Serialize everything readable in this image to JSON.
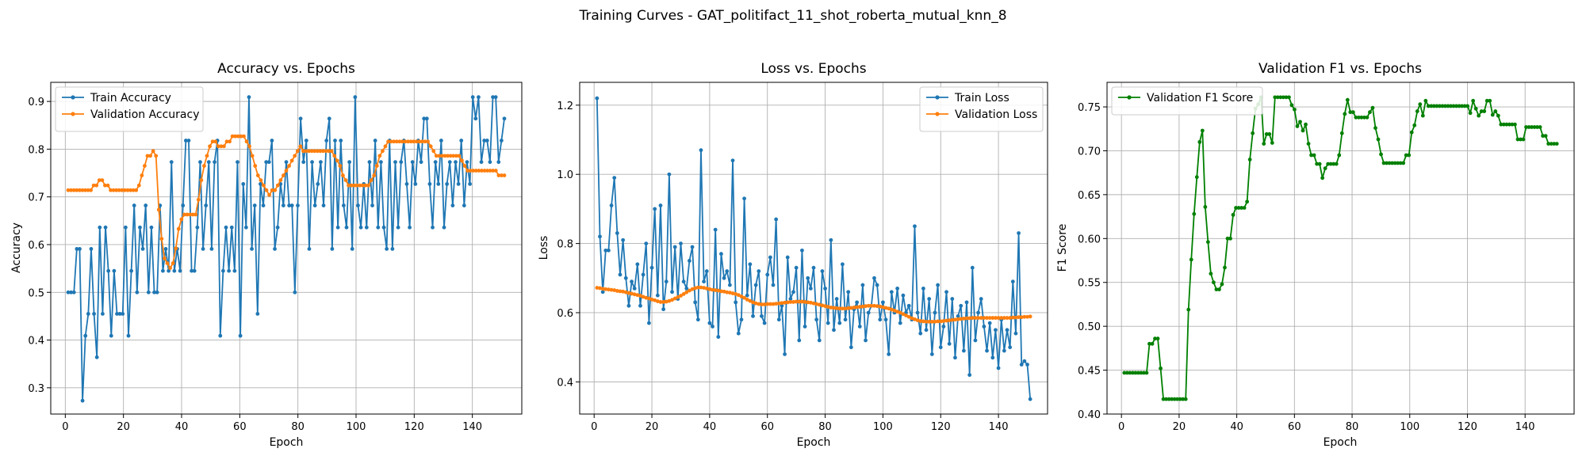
{
  "figure": {
    "suptitle": "Training Curves - GAT_politifact_11_shot_roberta_mutual_knn_8"
  },
  "colors": {
    "train": "#1f77b4",
    "validation": "#ff7f0e",
    "f1": "#008000",
    "grid": "#b0b0b0",
    "axes": "#000000"
  },
  "chart_data": [
    {
      "type": "line",
      "title": "Accuracy vs. Epochs",
      "xlabel": "Epoch",
      "ylabel": "Accuracy",
      "xlim": [
        -5,
        157
      ],
      "ylim": [
        0.245,
        0.94
      ],
      "xticks": [
        0,
        20,
        40,
        60,
        80,
        100,
        120,
        140
      ],
      "yticks": [
        0.3,
        0.4,
        0.5,
        0.6,
        0.7,
        0.8,
        0.9
      ],
      "grid": true,
      "legend": "upper left",
      "x_range": [
        1,
        151
      ],
      "marker": "circle",
      "series": [
        {
          "name": "Train Accuracy",
          "color": "#1f77b4",
          "values": [
            0.5,
            0.5,
            0.5,
            0.591,
            0.591,
            0.273,
            0.409,
            0.455,
            0.591,
            0.455,
            0.364,
            0.636,
            0.455,
            0.636,
            0.545,
            0.409,
            0.545,
            0.455,
            0.455,
            0.455,
            0.636,
            0.409,
            0.545,
            0.682,
            0.5,
            0.636,
            0.591,
            0.682,
            0.5,
            0.636,
            0.5,
            0.5,
            0.682,
            0.545,
            0.591,
            0.545,
            0.773,
            0.545,
            0.591,
            0.545,
            0.682,
            0.818,
            0.818,
            0.545,
            0.545,
            0.636,
            0.773,
            0.591,
            0.682,
            0.773,
            0.591,
            0.773,
            0.818,
            0.409,
            0.545,
            0.636,
            0.545,
            0.636,
            0.545,
            0.773,
            0.409,
            0.727,
            0.636,
            0.909,
            0.591,
            0.682,
            0.455,
            0.727,
            0.682,
            0.773,
            0.773,
            0.818,
            0.591,
            0.636,
            0.727,
            0.682,
            0.773,
            0.682,
            0.682,
            0.5,
            0.682,
            0.864,
            0.773,
            0.818,
            0.591,
            0.773,
            0.682,
            0.727,
            0.773,
            0.682,
            0.818,
            0.864,
            0.591,
            0.818,
            0.636,
            0.818,
            0.682,
            0.636,
            0.773,
            0.591,
            0.909,
            0.682,
            0.636,
            0.727,
            0.636,
            0.773,
            0.682,
            0.818,
            0.636,
            0.773,
            0.636,
            0.591,
            0.818,
            0.591,
            0.773,
            0.636,
            0.773,
            0.818,
            0.727,
            0.636,
            0.773,
            0.727,
            0.818,
            0.773,
            0.864,
            0.864,
            0.727,
            0.636,
            0.773,
            0.727,
            0.818,
            0.636,
            0.727,
            0.773,
            0.682,
            0.773,
            0.727,
            0.818,
            0.682,
            0.773,
            0.727,
            0.909,
            0.864,
            0.909,
            0.773,
            0.818,
            0.818,
            0.773,
            0.909,
            0.909,
            0.773,
            0.818,
            0.864
          ]
        },
        {
          "name": "Validation Accuracy",
          "color": "#ff7f0e",
          "values": [
            0.714,
            0.714,
            0.714,
            0.714,
            0.714,
            0.714,
            0.714,
            0.714,
            0.714,
            0.724,
            0.724,
            0.735,
            0.735,
            0.724,
            0.724,
            0.714,
            0.714,
            0.714,
            0.714,
            0.714,
            0.714,
            0.714,
            0.714,
            0.714,
            0.714,
            0.724,
            0.745,
            0.765,
            0.786,
            0.786,
            0.796,
            0.786,
            0.673,
            0.612,
            0.571,
            0.561,
            0.551,
            0.561,
            0.592,
            0.633,
            0.653,
            0.663,
            0.663,
            0.663,
            0.663,
            0.663,
            0.694,
            0.735,
            0.765,
            0.786,
            0.806,
            0.816,
            0.816,
            0.806,
            0.806,
            0.806,
            0.816,
            0.816,
            0.827,
            0.827,
            0.827,
            0.827,
            0.827,
            0.816,
            0.806,
            0.786,
            0.765,
            0.745,
            0.735,
            0.724,
            0.714,
            0.704,
            0.714,
            0.714,
            0.724,
            0.735,
            0.745,
            0.755,
            0.765,
            0.776,
            0.786,
            0.796,
            0.806,
            0.796,
            0.796,
            0.796,
            0.796,
            0.796,
            0.796,
            0.796,
            0.796,
            0.796,
            0.796,
            0.796,
            0.786,
            0.776,
            0.765,
            0.745,
            0.735,
            0.724,
            0.724,
            0.724,
            0.724,
            0.724,
            0.724,
            0.724,
            0.724,
            0.735,
            0.745,
            0.765,
            0.786,
            0.796,
            0.806,
            0.816,
            0.816,
            0.816,
            0.816,
            0.816,
            0.816,
            0.816,
            0.816,
            0.816,
            0.816,
            0.816,
            0.816,
            0.816,
            0.816,
            0.816,
            0.806,
            0.796,
            0.786,
            0.786,
            0.786,
            0.786,
            0.786,
            0.786,
            0.786,
            0.786,
            0.786,
            0.776,
            0.765,
            0.755,
            0.755,
            0.755,
            0.755,
            0.755,
            0.755,
            0.755,
            0.755,
            0.755,
            0.755,
            0.755,
            0.745,
            0.745,
            0.745
          ]
        }
      ]
    },
    {
      "type": "line",
      "title": "Loss vs. Epochs",
      "xlabel": "Epoch",
      "ylabel": "Loss",
      "xlim": [
        -5,
        157
      ],
      "ylim": [
        0.307,
        1.266
      ],
      "xticks": [
        0,
        20,
        40,
        60,
        80,
        100,
        120,
        140
      ],
      "yticks": [
        0.4,
        0.6,
        0.8,
        1.0,
        1.2
      ],
      "grid": true,
      "legend": "upper right",
      "x_range": [
        1,
        151
      ],
      "marker": "circle",
      "series": [
        {
          "name": "Train Loss",
          "color": "#1f77b4",
          "values": [
            1.22,
            0.82,
            0.66,
            0.78,
            0.78,
            0.91,
            0.99,
            0.83,
            0.71,
            0.81,
            0.7,
            0.62,
            0.69,
            0.67,
            0.74,
            0.62,
            0.71,
            0.8,
            0.57,
            0.73,
            0.9,
            0.65,
            0.91,
            0.61,
            0.69,
            1.0,
            0.66,
            0.79,
            0.64,
            0.8,
            0.69,
            0.67,
            0.75,
            0.79,
            0.63,
            0.58,
            1.07,
            0.69,
            0.72,
            0.57,
            0.56,
            0.84,
            0.53,
            0.77,
            0.7,
            0.72,
            0.68,
            1.04,
            0.63,
            0.54,
            0.58,
            0.93,
            0.65,
            0.74,
            0.59,
            0.68,
            0.72,
            0.59,
            0.57,
            0.71,
            0.76,
            0.68,
            0.87,
            0.58,
            0.62,
            0.48,
            0.76,
            0.64,
            0.66,
            0.73,
            0.52,
            0.78,
            0.56,
            0.7,
            0.67,
            0.73,
            0.58,
            0.52,
            0.72,
            0.67,
            0.57,
            0.81,
            0.55,
            0.64,
            0.57,
            0.74,
            0.58,
            0.66,
            0.5,
            0.61,
            0.63,
            0.56,
            0.68,
            0.52,
            0.6,
            0.62,
            0.7,
            0.68,
            0.58,
            0.63,
            0.58,
            0.48,
            0.66,
            0.6,
            0.67,
            0.57,
            0.65,
            0.6,
            0.62,
            0.58,
            0.85,
            0.6,
            0.54,
            0.67,
            0.55,
            0.64,
            0.48,
            0.6,
            0.68,
            0.5,
            0.56,
            0.66,
            0.51,
            0.64,
            0.47,
            0.59,
            0.62,
            0.49,
            0.63,
            0.42,
            0.73,
            0.52,
            0.6,
            0.64,
            0.56,
            0.49,
            0.57,
            0.47,
            0.55,
            0.44,
            0.58,
            0.49,
            0.55,
            0.5,
            0.69,
            0.54,
            0.83,
            0.45,
            0.46,
            0.45,
            0.35
          ]
        },
        {
          "name": "Validation Loss",
          "color": "#ff7f0e",
          "values": [
            0.672,
            0.671,
            0.669,
            0.668,
            0.667,
            0.666,
            0.665,
            0.663,
            0.662,
            0.661,
            0.659,
            0.657,
            0.655,
            0.653,
            0.651,
            0.649,
            0.646,
            0.643,
            0.641,
            0.638,
            0.636,
            0.633,
            0.631,
            0.631,
            0.632,
            0.634,
            0.637,
            0.641,
            0.645,
            0.649,
            0.654,
            0.659,
            0.664,
            0.668,
            0.671,
            0.673,
            0.673,
            0.672,
            0.67,
            0.668,
            0.666,
            0.665,
            0.664,
            0.662,
            0.661,
            0.659,
            0.658,
            0.656,
            0.654,
            0.651,
            0.647,
            0.643,
            0.638,
            0.634,
            0.63,
            0.627,
            0.625,
            0.624,
            0.624,
            0.625,
            0.625,
            0.625,
            0.626,
            0.627,
            0.628,
            0.629,
            0.63,
            0.631,
            0.631,
            0.632,
            0.632,
            0.632,
            0.631,
            0.63,
            0.629,
            0.627,
            0.625,
            0.623,
            0.621,
            0.619,
            0.617,
            0.615,
            0.614,
            0.613,
            0.612,
            0.612,
            0.612,
            0.613,
            0.614,
            0.615,
            0.616,
            0.617,
            0.618,
            0.619,
            0.62,
            0.62,
            0.62,
            0.619,
            0.618,
            0.616,
            0.614,
            0.612,
            0.609,
            0.606,
            0.603,
            0.6,
            0.596,
            0.592,
            0.588,
            0.584,
            0.581,
            0.578,
            0.576,
            0.575,
            0.574,
            0.574,
            0.574,
            0.574,
            0.575,
            0.575,
            0.576,
            0.577,
            0.578,
            0.579,
            0.58,
            0.581,
            0.582,
            0.583,
            0.584,
            0.584,
            0.585,
            0.585,
            0.585,
            0.585,
            0.585,
            0.585,
            0.585,
            0.585,
            0.585,
            0.585,
            0.585,
            0.585,
            0.585,
            0.585,
            0.586,
            0.586,
            0.587,
            0.587,
            0.588,
            0.588,
            0.589
          ]
        }
      ]
    },
    {
      "type": "line",
      "title": "Validation F1 vs. Epochs",
      "xlabel": "Epoch",
      "ylabel": "F1 Score",
      "xlim": [
        -5,
        157
      ],
      "ylim": [
        0.4,
        0.778
      ],
      "xticks": [
        0,
        20,
        40,
        60,
        80,
        100,
        120,
        140
      ],
      "yticks": [
        0.4,
        0.45,
        0.5,
        0.55,
        0.6,
        0.65,
        0.7,
        0.75
      ],
      "grid": true,
      "legend": "upper left",
      "x_range": [
        1,
        151
      ],
      "marker": "circle",
      "series": [
        {
          "name": "Validation F1 Score",
          "color": "#008000",
          "values": [
            0.447,
            0.447,
            0.447,
            0.447,
            0.447,
            0.447,
            0.447,
            0.447,
            0.447,
            0.48,
            0.48,
            0.486,
            0.486,
            0.452,
            0.417,
            0.417,
            0.417,
            0.417,
            0.417,
            0.417,
            0.417,
            0.417,
            0.417,
            0.519,
            0.576,
            0.628,
            0.67,
            0.71,
            0.723,
            0.636,
            0.596,
            0.56,
            0.55,
            0.542,
            0.542,
            0.548,
            0.567,
            0.6,
            0.6,
            0.627,
            0.635,
            0.635,
            0.635,
            0.635,
            0.642,
            0.69,
            0.72,
            0.748,
            0.753,
            0.761,
            0.708,
            0.719,
            0.719,
            0.709,
            0.761,
            0.761,
            0.761,
            0.761,
            0.761,
            0.761,
            0.752,
            0.747,
            0.728,
            0.733,
            0.723,
            0.73,
            0.708,
            0.695,
            0.695,
            0.685,
            0.685,
            0.669,
            0.68,
            0.685,
            0.685,
            0.685,
            0.685,
            0.695,
            0.72,
            0.742,
            0.758,
            0.744,
            0.744,
            0.738,
            0.738,
            0.738,
            0.738,
            0.738,
            0.744,
            0.749,
            0.726,
            0.713,
            0.696,
            0.686,
            0.686,
            0.686,
            0.686,
            0.686,
            0.686,
            0.686,
            0.686,
            0.695,
            0.695,
            0.721,
            0.729,
            0.745,
            0.753,
            0.74,
            0.757,
            0.751,
            0.751,
            0.751,
            0.751,
            0.751,
            0.751,
            0.751,
            0.751,
            0.751,
            0.751,
            0.751,
            0.751,
            0.751,
            0.751,
            0.751,
            0.743,
            0.757,
            0.748,
            0.74,
            0.745,
            0.745,
            0.757,
            0.757,
            0.741,
            0.745,
            0.74,
            0.73,
            0.73,
            0.73,
            0.73,
            0.73,
            0.73,
            0.713,
            0.713,
            0.713,
            0.727,
            0.727,
            0.727,
            0.727,
            0.727,
            0.727,
            0.717,
            0.717,
            0.708,
            0.708,
            0.708,
            0.708
          ]
        }
      ]
    }
  ]
}
